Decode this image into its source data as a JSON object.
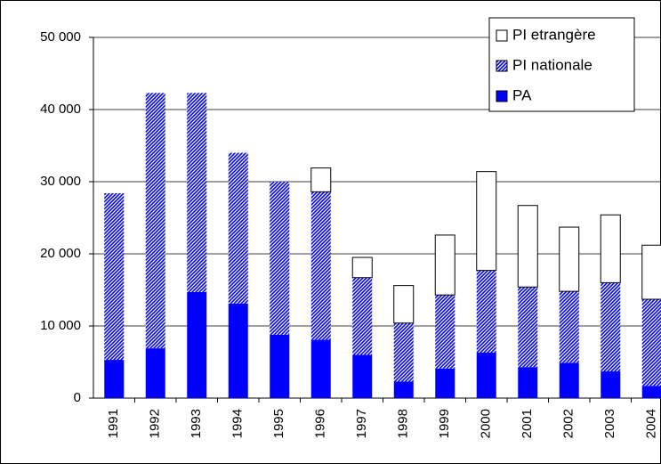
{
  "chart_data": {
    "type": "stacked_bar",
    "categories": [
      "1991",
      "1992",
      "1993",
      "1994",
      "1995",
      "1996",
      "1997",
      "1998",
      "1999",
      "2000",
      "2001",
      "2002",
      "2003",
      "2004"
    ],
    "series": [
      {
        "name": "PA",
        "color": "#0000ff",
        "pattern": "solid",
        "values": [
          5300,
          6900,
          14700,
          13100,
          8800,
          8100,
          6000,
          2300,
          4100,
          6300,
          4300,
          4900,
          3700,
          1700
        ]
      },
      {
        "name": "PI nationale",
        "color": "#0000ff",
        "pattern": "hatch",
        "values": [
          23100,
          35400,
          27600,
          20900,
          21200,
          20500,
          10700,
          8100,
          10200,
          11400,
          11100,
          9900,
          12300,
          12000
        ]
      },
      {
        "name": "PI etrangère",
        "color": "#ffffff",
        "pattern": "solid",
        "values": [
          0,
          0,
          0,
          0,
          0,
          3300,
          2800,
          5200,
          8300,
          13700,
          11300,
          8900,
          9400,
          7500
        ]
      }
    ],
    "ylim": [
      0,
      50000
    ],
    "yticks": [
      0,
      {
        "value": 10000,
        "label": "10 000"
      },
      {
        "value": 20000,
        "label": "20 000"
      },
      {
        "value": 30000,
        "label": "30 000"
      },
      {
        "value": 40000,
        "label": "40 000"
      },
      {
        "value": 50000,
        "label": "50 000"
      }
    ],
    "grid": true,
    "legend": "top-right"
  }
}
